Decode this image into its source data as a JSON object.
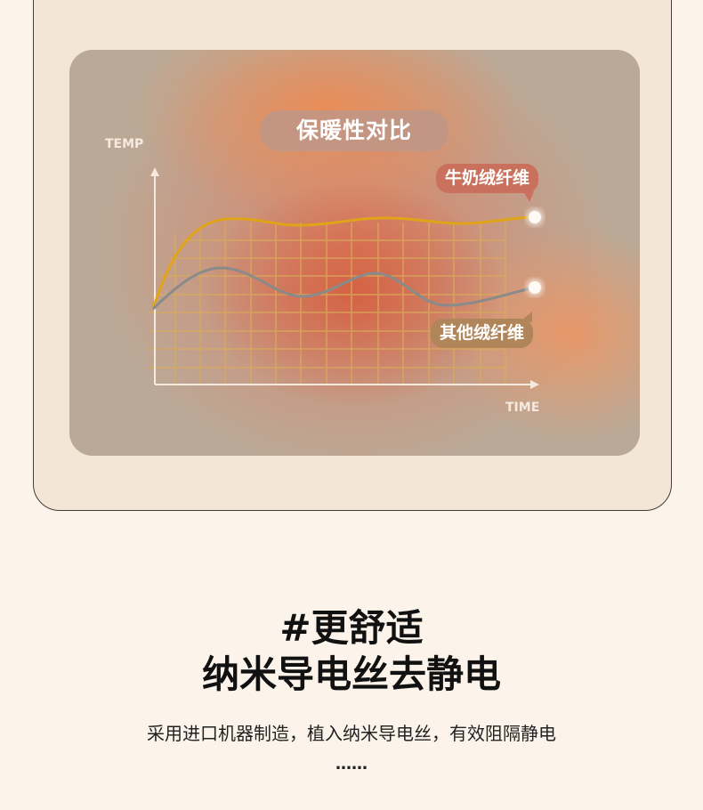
{
  "chart": {
    "title": "保暖性对比",
    "y_axis_label": "TEMP",
    "x_axis_label": "TIME",
    "series_labels": [
      "牛奶绒纤维",
      "其他绒纤维"
    ],
    "colors": {
      "milk_fiber": "#e0a418",
      "other_fiber": "#8a8a8a",
      "grid": "#d9ab5a"
    }
  },
  "feature": {
    "headline_line1": "#更舒适",
    "headline_line2": "纳米导电丝去静电",
    "description": "采用进口机器制造，植入纳米导电丝，有效阻隔静电",
    "ellipsis": "……"
  }
}
